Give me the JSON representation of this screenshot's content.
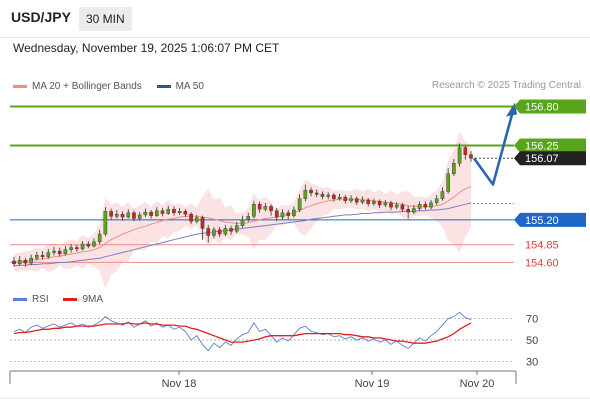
{
  "header": {
    "pair": "USD/JPY",
    "timeframe": "30 MIN",
    "datetime": "Wednesday, November 19, 2025 1:06:07 PM CET"
  },
  "legend": {
    "items": [
      {
        "label": "MA 20 + Bollinger Bands",
        "color": "#f08c8c"
      },
      {
        "label": "MA 50",
        "color": "#2f5597"
      }
    ],
    "credit": "Research © 2025 Trading Central"
  },
  "rsi_legend": {
    "items": [
      {
        "label": "RSI",
        "color": "#5b7fd4"
      },
      {
        "label": "9MA",
        "color": "#e02020"
      }
    ]
  },
  "colors": {
    "resistance": "#58a51c",
    "pivot": "#1f66c9",
    "support": "#f28a8a",
    "last_price": "#222222",
    "candle_up": "#58a51c",
    "candle_down": "#d42020",
    "band_fill": "#fbdada",
    "arrow": "#2a66b0"
  },
  "chart_data": [
    {
      "type": "candlestick",
      "title": "USD/JPY",
      "ylim": [
        154.38,
        156.92
      ],
      "x_ticks": [
        "Nov 18",
        "Nov 19",
        "Nov 20"
      ],
      "levels": [
        {
          "label": "156.80",
          "value": 156.8,
          "role": "resistance"
        },
        {
          "label": "156.25",
          "value": 156.25,
          "role": "resistance"
        },
        {
          "label": "156.07",
          "value": 156.07,
          "role": "last"
        },
        {
          "label": "155.20",
          "value": 155.2,
          "role": "pivot"
        },
        {
          "label": "154.85",
          "value": 154.85,
          "role": "support"
        },
        {
          "label": "154.60",
          "value": 154.6,
          "role": "support"
        }
      ],
      "candles": [
        [
          154.62,
          154.58,
          154.68,
          154.54
        ],
        [
          154.58,
          154.63,
          154.69,
          154.55
        ],
        [
          154.63,
          154.59,
          154.66,
          154.54
        ],
        [
          154.59,
          154.66,
          154.71,
          154.56
        ],
        [
          154.66,
          154.7,
          154.75,
          154.63
        ],
        [
          154.7,
          154.68,
          154.76,
          154.64
        ],
        [
          154.68,
          154.74,
          154.79,
          154.65
        ],
        [
          154.74,
          154.76,
          154.82,
          154.7
        ],
        [
          154.76,
          154.72,
          154.81,
          154.68
        ],
        [
          154.72,
          154.78,
          154.83,
          154.7
        ],
        [
          154.78,
          154.81,
          154.86,
          154.74
        ],
        [
          154.81,
          154.79,
          154.85,
          154.75
        ],
        [
          154.79,
          154.86,
          154.9,
          154.77
        ],
        [
          154.86,
          154.83,
          154.9,
          154.8
        ],
        [
          154.83,
          154.89,
          154.94,
          154.81
        ],
        [
          154.89,
          155.0,
          155.06,
          154.86
        ],
        [
          155.0,
          155.32,
          155.38,
          154.97
        ],
        [
          155.32,
          155.25,
          155.36,
          155.2
        ],
        [
          155.25,
          155.28,
          155.34,
          155.22
        ],
        [
          155.28,
          155.24,
          155.32,
          155.19
        ],
        [
          155.24,
          155.3,
          155.35,
          155.22
        ],
        [
          155.3,
          155.22,
          155.33,
          155.18
        ],
        [
          155.22,
          155.27,
          155.31,
          155.19
        ],
        [
          155.27,
          155.31,
          155.36,
          155.24
        ],
        [
          155.31,
          155.26,
          155.34,
          155.22
        ],
        [
          155.26,
          155.33,
          155.38,
          155.24
        ],
        [
          155.33,
          155.29,
          155.37,
          155.25
        ],
        [
          155.29,
          155.35,
          155.4,
          155.27
        ],
        [
          155.35,
          155.3,
          155.39,
          155.26
        ],
        [
          155.3,
          155.32,
          155.37,
          155.27
        ],
        [
          155.32,
          155.28,
          155.35,
          155.24
        ],
        [
          155.28,
          155.18,
          155.31,
          155.14
        ],
        [
          155.18,
          155.23,
          155.27,
          155.15
        ],
        [
          155.23,
          155.08,
          155.26,
          154.92
        ],
        [
          155.08,
          154.98,
          155.13,
          154.88
        ],
        [
          154.98,
          155.06,
          155.1,
          154.94
        ],
        [
          155.06,
          155.0,
          155.1,
          154.96
        ],
        [
          155.0,
          155.08,
          155.13,
          154.97
        ],
        [
          155.08,
          155.04,
          155.12,
          154.99
        ],
        [
          155.04,
          155.12,
          155.17,
          155.01
        ],
        [
          155.12,
          155.2,
          155.26,
          155.09
        ],
        [
          155.2,
          155.25,
          155.3,
          155.17
        ],
        [
          155.25,
          155.42,
          155.47,
          155.22
        ],
        [
          155.42,
          155.35,
          155.46,
          155.3
        ],
        [
          155.35,
          155.39,
          155.44,
          155.32
        ],
        [
          155.39,
          155.33,
          155.42,
          155.26
        ],
        [
          155.33,
          155.24,
          155.37,
          155.18
        ],
        [
          155.24,
          155.3,
          155.35,
          155.2
        ],
        [
          155.3,
          155.26,
          155.34,
          155.21
        ],
        [
          155.26,
          155.34,
          155.39,
          155.23
        ],
        [
          155.34,
          155.5,
          155.56,
          155.31
        ],
        [
          155.5,
          155.62,
          155.7,
          155.46
        ],
        [
          155.62,
          155.58,
          155.66,
          155.53
        ],
        [
          155.58,
          155.56,
          155.63,
          155.52
        ],
        [
          155.56,
          155.53,
          155.6,
          155.49
        ],
        [
          155.53,
          155.55,
          155.59,
          155.49
        ],
        [
          155.55,
          155.5,
          155.58,
          155.46
        ],
        [
          155.5,
          155.52,
          155.57,
          155.47
        ],
        [
          155.52,
          155.47,
          155.55,
          155.43
        ],
        [
          155.47,
          155.5,
          155.55,
          155.44
        ],
        [
          155.5,
          155.45,
          155.53,
          155.41
        ],
        [
          155.45,
          155.48,
          155.53,
          155.42
        ],
        [
          155.48,
          155.43,
          155.51,
          155.39
        ],
        [
          155.43,
          155.46,
          155.5,
          155.4
        ],
        [
          155.46,
          155.41,
          155.49,
          155.37
        ],
        [
          155.41,
          155.44,
          155.48,
          155.38
        ],
        [
          155.44,
          155.38,
          155.47,
          155.34
        ],
        [
          155.38,
          155.41,
          155.45,
          155.35
        ],
        [
          155.41,
          155.35,
          155.44,
          155.31
        ],
        [
          155.35,
          155.31,
          155.4,
          155.22
        ],
        [
          155.31,
          155.36,
          155.41,
          155.28
        ],
        [
          155.36,
          155.42,
          155.46,
          155.33
        ],
        [
          155.42,
          155.38,
          155.46,
          155.34
        ],
        [
          155.38,
          155.44,
          155.48,
          155.35
        ],
        [
          155.44,
          155.5,
          155.55,
          155.41
        ],
        [
          155.5,
          155.6,
          155.66,
          155.47
        ],
        [
          155.6,
          155.85,
          155.93,
          155.57
        ],
        [
          155.85,
          156.0,
          156.06,
          155.82
        ],
        [
          156.0,
          156.22,
          156.28,
          155.95
        ],
        [
          156.22,
          156.12,
          156.25,
          156.05
        ],
        [
          156.12,
          156.07,
          156.17,
          156.02
        ]
      ],
      "ma20": [
        154.6,
        154.61,
        154.62,
        154.63,
        154.64,
        154.65,
        154.66,
        154.68,
        154.69,
        154.7,
        154.72,
        154.73,
        154.75,
        154.76,
        154.78,
        154.81,
        154.87,
        154.92,
        154.96,
        155.0,
        155.03,
        155.06,
        155.09,
        155.11,
        155.14,
        155.16,
        155.19,
        155.21,
        155.22,
        155.24,
        155.25,
        155.25,
        155.25,
        155.24,
        155.23,
        155.21,
        155.19,
        155.17,
        155.16,
        155.15,
        155.15,
        155.16,
        155.18,
        155.2,
        155.22,
        155.23,
        155.24,
        155.26,
        155.28,
        155.3,
        155.33,
        155.37,
        155.4,
        155.43,
        155.45,
        155.47,
        155.48,
        155.49,
        155.49,
        155.49,
        155.49,
        155.48,
        155.48,
        155.47,
        155.46,
        155.45,
        155.44,
        155.43,
        155.42,
        155.4,
        155.39,
        155.39,
        155.39,
        155.39,
        155.4,
        155.42,
        155.47,
        155.52,
        155.59,
        155.64,
        155.67
      ],
      "ma50": [
        154.55,
        154.56,
        154.56,
        154.57,
        154.57,
        154.58,
        154.58,
        154.59,
        154.6,
        154.6,
        154.61,
        154.62,
        154.63,
        154.64,
        154.65,
        154.66,
        154.68,
        154.7,
        154.72,
        154.74,
        154.76,
        154.78,
        154.8,
        154.82,
        154.84,
        154.86,
        154.88,
        154.9,
        154.92,
        154.94,
        154.96,
        154.98,
        155.0,
        155.01,
        155.02,
        155.03,
        155.04,
        155.05,
        155.06,
        155.07,
        155.08,
        155.09,
        155.1,
        155.11,
        155.12,
        155.13,
        155.14,
        155.15,
        155.16,
        155.17,
        155.18,
        155.19,
        155.21,
        155.22,
        155.23,
        155.24,
        155.25,
        155.26,
        155.27,
        155.27,
        155.28,
        155.29,
        155.29,
        155.3,
        155.3,
        155.31,
        155.31,
        155.31,
        155.32,
        155.32,
        155.32,
        155.33,
        155.33,
        155.34,
        155.34,
        155.35,
        155.36,
        155.38,
        155.4,
        155.42,
        155.44
      ],
      "projection": [
        156.07,
        155.7,
        156.8
      ]
    },
    {
      "type": "line",
      "title": "RSI",
      "ylim": [
        20,
        80
      ],
      "y_ticks": [
        70,
        50,
        30
      ],
      "series": [
        {
          "name": "RSI",
          "color": "#5b7fd4",
          "values": [
            58,
            60,
            57,
            62,
            64,
            61,
            63,
            65,
            62,
            64,
            66,
            63,
            65,
            62,
            64,
            67,
            72,
            68,
            66,
            64,
            67,
            62,
            65,
            68,
            63,
            66,
            62,
            64,
            60,
            62,
            58,
            50,
            54,
            46,
            40,
            47,
            43,
            48,
            45,
            51,
            55,
            57,
            66,
            58,
            60,
            54,
            48,
            52,
            49,
            55,
            61,
            63,
            58,
            57,
            55,
            56,
            53,
            54,
            51,
            53,
            50,
            52,
            49,
            51,
            48,
            50,
            46,
            49,
            45,
            42,
            47,
            52,
            49,
            54,
            58,
            64,
            70,
            72,
            76,
            71,
            69
          ]
        },
        {
          "name": "9MA",
          "color": "#e02020",
          "values": [
            56,
            57,
            57,
            58,
            59,
            60,
            60,
            61,
            61,
            62,
            62,
            63,
            63,
            63,
            63,
            64,
            65,
            65,
            65,
            65,
            66,
            65,
            65,
            66,
            65,
            65,
            64,
            64,
            64,
            63,
            63,
            61,
            60,
            58,
            56,
            54,
            52,
            50,
            48,
            48,
            48,
            49,
            50,
            51,
            53,
            54,
            54,
            54,
            54,
            54,
            55,
            56,
            56,
            56,
            56,
            56,
            56,
            56,
            55,
            55,
            54,
            53,
            53,
            52,
            52,
            51,
            50,
            49,
            49,
            48,
            47,
            47,
            47,
            48,
            49,
            51,
            53,
            56,
            60,
            63,
            66
          ]
        }
      ]
    }
  ]
}
